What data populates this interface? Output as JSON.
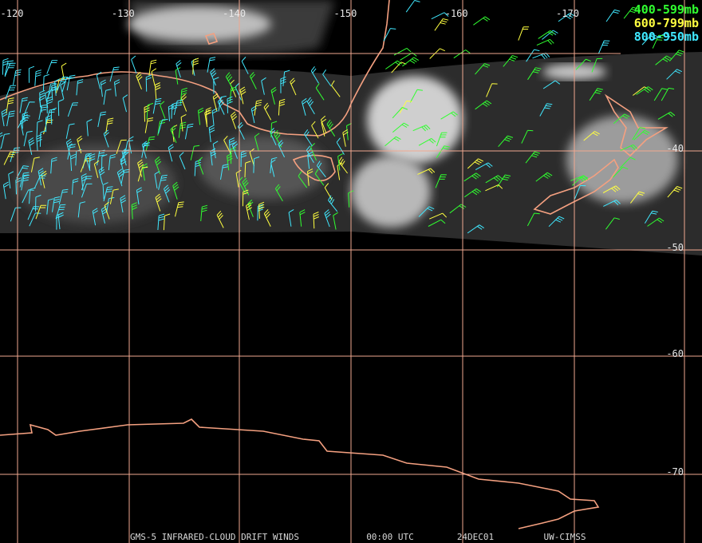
{
  "map": {
    "longitude_labels": [
      "-120",
      "-130",
      "-140",
      "-150",
      "-160",
      "-170"
    ],
    "latitude_labels": [
      "-40",
      "-50",
      "-60",
      "-70"
    ],
    "legend": [
      "400-599mb",
      "600-799mb",
      "800-950mb"
    ],
    "footer": [
      "GMS-5 INFRARED-CLOUD DRIFT WINDS",
      "00:00 UTC",
      "24DEC01",
      "UW-CIMSS"
    ]
  }
}
